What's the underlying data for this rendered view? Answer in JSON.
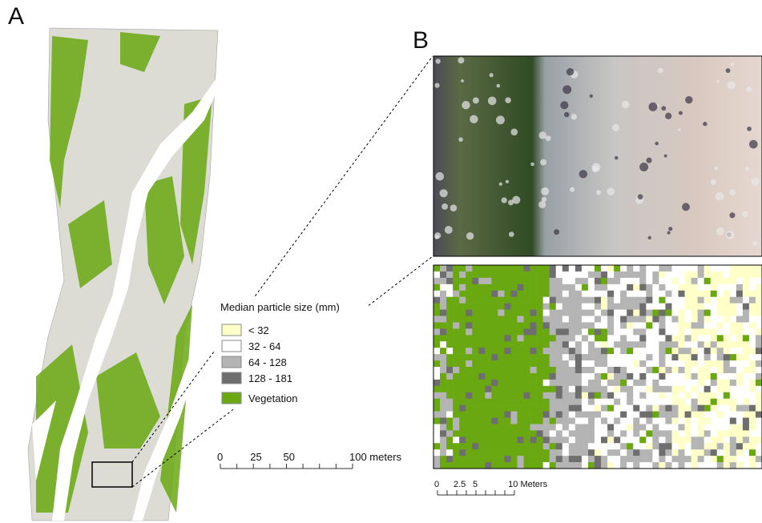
{
  "panels": {
    "a": {
      "label": "A"
    },
    "b": {
      "label": "B"
    }
  },
  "legend": {
    "title": "Median particle size (mm)",
    "items": [
      {
        "label": "< 32",
        "color": "#ffffc8"
      },
      {
        "label": "32 - 64",
        "color": "#ffffff"
      },
      {
        "label": "64 - 128",
        "color": "#b4b4b4"
      },
      {
        "label": "128 - 181",
        "color": "#6e6e6e"
      },
      {
        "label": "Vegetation",
        "color": "#6aa812"
      }
    ]
  },
  "scale_a": {
    "ticks": [
      "0",
      "25",
      "50",
      "100 meters"
    ]
  },
  "scale_b": {
    "ticks": [
      "0",
      "2.5",
      "5",
      "10 Meters"
    ]
  }
}
